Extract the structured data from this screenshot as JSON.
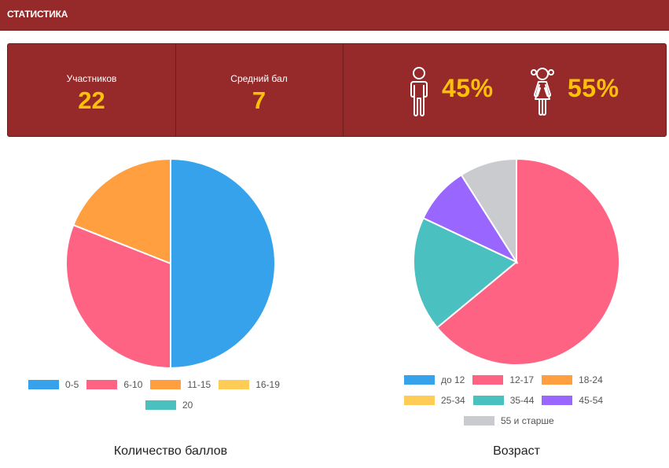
{
  "header": {
    "title": "СТАТИСТИКА"
  },
  "stats": {
    "participants": {
      "label": "Участников",
      "value": "22"
    },
    "average": {
      "label": "Средний бал",
      "value": "7"
    },
    "male_percent": "45%",
    "female_percent": "55%"
  },
  "colors": {
    "header_bg": "#962a2a",
    "accent_value": "#ffc107",
    "blue": "#36a2eb",
    "pink": "#ff6384",
    "orange": "#ff9f40",
    "yellow": "#ffcd56",
    "teal": "#4bc0c0",
    "purple": "#9966ff",
    "grey": "#c9cbcf"
  },
  "icons": {
    "male": "male-person-icon",
    "female": "female-person-icon"
  },
  "chart_data": [
    {
      "type": "pie",
      "title": "Количество баллов",
      "categories": [
        "0-5",
        "6-10",
        "11-15",
        "16-19",
        "20"
      ],
      "values": [
        50,
        31,
        19,
        0,
        0
      ],
      "colors": [
        "#36a2eb",
        "#ff6384",
        "#ff9f40",
        "#ffcd56",
        "#4bc0c0"
      ],
      "legend": "bottom"
    },
    {
      "type": "pie",
      "title": "Возраст",
      "categories": [
        "до 12",
        "12-17",
        "18-24",
        "25-34",
        "35-44",
        "45-54",
        "55 и старше"
      ],
      "values": [
        0,
        64,
        0,
        0,
        18,
        9,
        9
      ],
      "colors": [
        "#36a2eb",
        "#ff6384",
        "#ff9f40",
        "#ffcd56",
        "#4bc0c0",
        "#9966ff",
        "#c9cbcf"
      ],
      "legend": "bottom"
    }
  ]
}
